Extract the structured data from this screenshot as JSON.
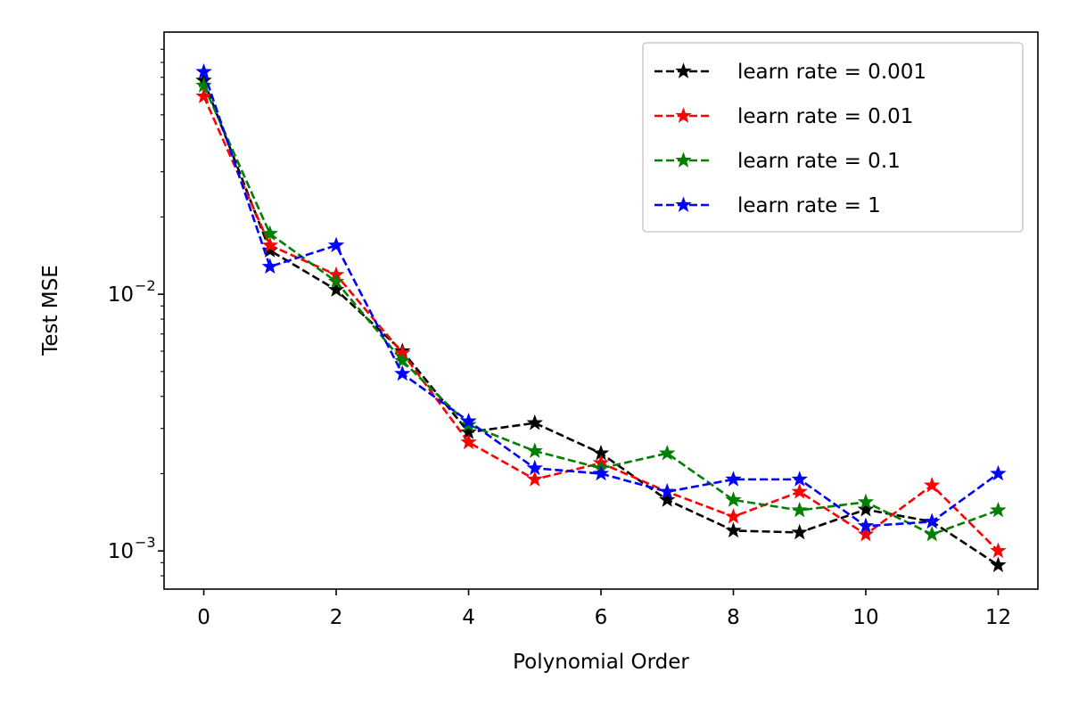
{
  "chart_data": {
    "type": "line",
    "xlabel": "Polynomial Order",
    "ylabel": "Test MSE",
    "y_scale": "log",
    "xlim": [
      -0.6,
      12.6
    ],
    "ylim": [
      0.00071,
      0.105
    ],
    "x_ticks": [
      0,
      2,
      4,
      6,
      8,
      10,
      12
    ],
    "x_tick_labels": [
      "0",
      "2",
      "4",
      "6",
      "8",
      "10",
      "12"
    ],
    "y_major_ticks": [
      0.001,
      0.01
    ],
    "y_tick_labels": [
      {
        "base": "10",
        "exp": "−3"
      },
      {
        "base": "10",
        "exp": "−2"
      }
    ],
    "legend_position": "top-right",
    "grid": false,
    "x": [
      0,
      1,
      2,
      3,
      4,
      5,
      6,
      7,
      8,
      9,
      10,
      11,
      12
    ],
    "series": [
      {
        "name": "learn rate = 0.001",
        "color": "#000000",
        "values": [
          0.068,
          0.0148,
          0.0104,
          0.006,
          0.0029,
          0.00315,
          0.0024,
          0.00158,
          0.0012,
          0.00118,
          0.00145,
          0.0013,
          0.00088
        ]
      },
      {
        "name": "learn rate = 0.01",
        "color": "#ff0000",
        "values": [
          0.059,
          0.0155,
          0.0119,
          0.0059,
          0.00265,
          0.0019,
          0.0022,
          0.0017,
          0.00136,
          0.0017,
          0.00116,
          0.0018,
          0.001
        ]
      },
      {
        "name": "learn rate = 0.1",
        "color": "#008000",
        "values": [
          0.065,
          0.0172,
          0.0112,
          0.0055,
          0.0031,
          0.00245,
          0.0021,
          0.0024,
          0.00158,
          0.00144,
          0.00155,
          0.00116,
          0.00144
        ]
      },
      {
        "name": "learn rate = 1",
        "color": "#0000ff",
        "values": [
          0.0735,
          0.0128,
          0.0155,
          0.0049,
          0.0032,
          0.0021,
          0.002,
          0.0017,
          0.0019,
          0.0019,
          0.00125,
          0.0013,
          0.002
        ]
      }
    ]
  }
}
